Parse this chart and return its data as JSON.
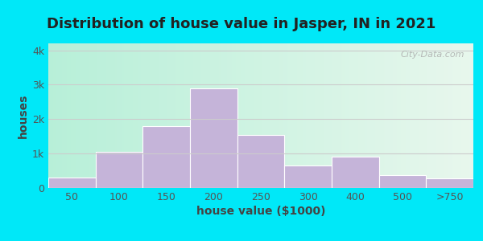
{
  "title": "Distribution of house value in Jasper, IN in 2021",
  "xlabel": "house value ($1000)",
  "ylabel": "houses",
  "categories": [
    "50",
    "100",
    "150",
    "200",
    "250",
    "300",
    "400",
    "500",
    ">750"
  ],
  "values": [
    300,
    1050,
    1800,
    2900,
    1550,
    650,
    900,
    380,
    280
  ],
  "bar_color": "#c5b4d9",
  "yticks": [
    0,
    1000,
    2000,
    3000,
    4000
  ],
  "ytick_labels": [
    "0",
    "1k",
    "2k",
    "3k",
    "4k"
  ],
  "ylim": [
    0,
    4200
  ],
  "bg_outer": "#00e8f8",
  "grid_color": "#e0e0e0",
  "title_fontsize": 13,
  "label_fontsize": 10,
  "tick_fontsize": 9,
  "watermark": "City-Data.com"
}
